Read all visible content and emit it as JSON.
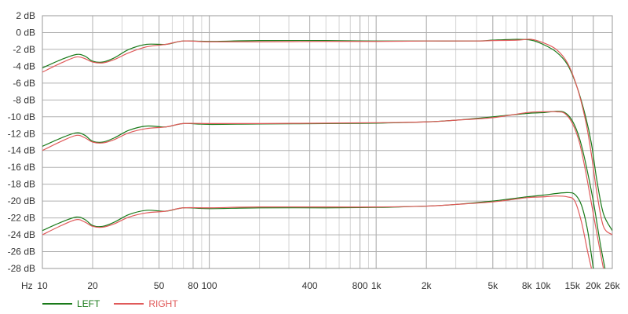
{
  "chart_data": {
    "type": "line",
    "xscale": "log",
    "yunit": "dB",
    "xlim": [
      10,
      26000
    ],
    "ylim": [
      -28,
      2
    ],
    "grid": true,
    "legend_position": "bottom-left",
    "x_axis_unit_label": "Hz",
    "x_tick_labels": [
      {
        "value": 10,
        "label": "10"
      },
      {
        "value": 20,
        "label": "20"
      },
      {
        "value": 50,
        "label": "50"
      },
      {
        "value": 80,
        "label": "80"
      },
      {
        "value": 100,
        "label": "100"
      },
      {
        "value": 400,
        "label": "400"
      },
      {
        "value": 800,
        "label": "800"
      },
      {
        "value": 1000,
        "label": "1k"
      },
      {
        "value": 2000,
        "label": "2k"
      },
      {
        "value": 5000,
        "label": "5k"
      },
      {
        "value": 8000,
        "label": "8k"
      },
      {
        "value": 10000,
        "label": "10k"
      },
      {
        "value": 15000,
        "label": "15k"
      },
      {
        "value": 20000,
        "label": "20k"
      },
      {
        "value": 26000,
        "label": "26k"
      }
    ],
    "y_tick_labels": [
      {
        "value": 2,
        "label": "2 dB"
      },
      {
        "value": 0,
        "label": "0 dB"
      },
      {
        "value": -2,
        "label": "-2 dB"
      },
      {
        "value": -4,
        "label": "-4 dB"
      },
      {
        "value": -6,
        "label": "-6 dB"
      },
      {
        "value": -8,
        "label": "-8 dB"
      },
      {
        "value": -10,
        "label": "-10 dB"
      },
      {
        "value": -12,
        "label": "-12 dB"
      },
      {
        "value": -14,
        "label": "-14 dB"
      },
      {
        "value": -16,
        "label": "-16 dB"
      },
      {
        "value": -18,
        "label": "-18 dB"
      },
      {
        "value": -20,
        "label": "-20 dB"
      },
      {
        "value": -22,
        "label": "-22 dB"
      },
      {
        "value": -24,
        "label": "-24 dB"
      },
      {
        "value": -26,
        "label": "-26 dB"
      },
      {
        "value": -28,
        "label": "-28 dB"
      }
    ],
    "series": [
      {
        "name": "LEFT",
        "color": "#1a7a1a",
        "curves": [
          [
            [
              10,
              -4.2
            ],
            [
              13,
              -3.2
            ],
            [
              16,
              -2.6
            ],
            [
              18,
              -2.8
            ],
            [
              20,
              -3.4
            ],
            [
              23,
              -3.5
            ],
            [
              27,
              -3.0
            ],
            [
              33,
              -2.0
            ],
            [
              42,
              -1.4
            ],
            [
              55,
              -1.4
            ],
            [
              70,
              -1.0
            ],
            [
              100,
              -1.05
            ],
            [
              200,
              -0.95
            ],
            [
              500,
              -0.95
            ],
            [
              1000,
              -1.0
            ],
            [
              2000,
              -1.0
            ],
            [
              4000,
              -1.0
            ],
            [
              5000,
              -0.9
            ],
            [
              7000,
              -0.8
            ],
            [
              8500,
              -0.9
            ],
            [
              10000,
              -1.4
            ],
            [
              12000,
              -2.3
            ],
            [
              14000,
              -3.8
            ],
            [
              16000,
              -6.5
            ],
            [
              18000,
              -10.0
            ],
            [
              19500,
              -13.2
            ],
            [
              21000,
              -17.5
            ],
            [
              23000,
              -21.5
            ],
            [
              26000,
              -23.5
            ]
          ],
          [
            [
              10,
              -13.5
            ],
            [
              13,
              -12.5
            ],
            [
              16,
              -11.9
            ],
            [
              18,
              -12.2
            ],
            [
              20,
              -12.9
            ],
            [
              23,
              -13.0
            ],
            [
              27,
              -12.5
            ],
            [
              33,
              -11.6
            ],
            [
              42,
              -11.1
            ],
            [
              55,
              -11.2
            ],
            [
              70,
              -10.8
            ],
            [
              100,
              -10.9
            ],
            [
              200,
              -10.85
            ],
            [
              500,
              -10.8
            ],
            [
              1000,
              -10.75
            ],
            [
              2000,
              -10.6
            ],
            [
              3000,
              -10.4
            ],
            [
              5000,
              -10.0
            ],
            [
              8000,
              -9.6
            ],
            [
              10000,
              -9.5
            ],
            [
              12000,
              -9.35
            ],
            [
              13500,
              -9.5
            ],
            [
              15000,
              -10.5
            ],
            [
              16500,
              -12.5
            ],
            [
              18000,
              -15.5
            ],
            [
              20000,
              -20.0
            ],
            [
              22000,
              -25.0
            ],
            [
              23500,
              -28.0
            ]
          ],
          [
            [
              10,
              -23.5
            ],
            [
              13,
              -22.5
            ],
            [
              16,
              -21.9
            ],
            [
              18,
              -22.2
            ],
            [
              20,
              -22.9
            ],
            [
              23,
              -23.0
            ],
            [
              27,
              -22.5
            ],
            [
              33,
              -21.6
            ],
            [
              42,
              -21.1
            ],
            [
              55,
              -21.2
            ],
            [
              70,
              -20.8
            ],
            [
              100,
              -20.9
            ],
            [
              200,
              -20.8
            ],
            [
              500,
              -20.8
            ],
            [
              1000,
              -20.75
            ],
            [
              2000,
              -20.6
            ],
            [
              3000,
              -20.4
            ],
            [
              5000,
              -20.0
            ],
            [
              8000,
              -19.5
            ],
            [
              10000,
              -19.3
            ],
            [
              12000,
              -19.1
            ],
            [
              14000,
              -19.0
            ],
            [
              15500,
              -19.2
            ],
            [
              17000,
              -20.5
            ],
            [
              18500,
              -23.5
            ],
            [
              20000,
              -28.0
            ]
          ]
        ]
      },
      {
        "name": "RIGHT",
        "color": "#e05a5a",
        "curves": [
          [
            [
              10,
              -4.7
            ],
            [
              13,
              -3.6
            ],
            [
              16,
              -2.9
            ],
            [
              18,
              -3.1
            ],
            [
              20,
              -3.5
            ],
            [
              23,
              -3.6
            ],
            [
              27,
              -3.2
            ],
            [
              33,
              -2.4
            ],
            [
              42,
              -1.7
            ],
            [
              55,
              -1.4
            ],
            [
              70,
              -1.0
            ],
            [
              100,
              -1.1
            ],
            [
              200,
              -1.1
            ],
            [
              500,
              -1.05
            ],
            [
              1000,
              -1.05
            ],
            [
              2000,
              -1.0
            ],
            [
              4000,
              -1.0
            ],
            [
              5000,
              -0.95
            ],
            [
              7000,
              -0.9
            ],
            [
              8500,
              -0.8
            ],
            [
              10000,
              -1.2
            ],
            [
              12000,
              -2.0
            ],
            [
              14000,
              -3.6
            ],
            [
              16000,
              -6.5
            ],
            [
              18000,
              -10.5
            ],
            [
              19500,
              -14.5
            ],
            [
              21000,
              -19.0
            ],
            [
              23000,
              -23.0
            ],
            [
              26000,
              -24.0
            ]
          ],
          [
            [
              10,
              -14.0
            ],
            [
              13,
              -12.9
            ],
            [
              16,
              -12.2
            ],
            [
              18,
              -12.5
            ],
            [
              20,
              -13.0
            ],
            [
              23,
              -13.1
            ],
            [
              27,
              -12.7
            ],
            [
              33,
              -11.9
            ],
            [
              42,
              -11.4
            ],
            [
              55,
              -11.2
            ],
            [
              70,
              -10.8
            ],
            [
              100,
              -10.8
            ],
            [
              200,
              -10.8
            ],
            [
              500,
              -10.75
            ],
            [
              1000,
              -10.7
            ],
            [
              2000,
              -10.6
            ],
            [
              3000,
              -10.4
            ],
            [
              5000,
              -10.1
            ],
            [
              8000,
              -9.5
            ],
            [
              10000,
              -9.4
            ],
            [
              12000,
              -9.4
            ],
            [
              13500,
              -9.6
            ],
            [
              15000,
              -10.8
            ],
            [
              16500,
              -13.0
            ],
            [
              18000,
              -16.5
            ],
            [
              20000,
              -21.5
            ],
            [
              22000,
              -26.0
            ],
            [
              23000,
              -28.0
            ]
          ],
          [
            [
              10,
              -24.0
            ],
            [
              13,
              -22.9
            ],
            [
              16,
              -22.2
            ],
            [
              18,
              -22.5
            ],
            [
              20,
              -23.0
            ],
            [
              23,
              -23.1
            ],
            [
              27,
              -22.7
            ],
            [
              33,
              -21.9
            ],
            [
              42,
              -21.4
            ],
            [
              55,
              -21.2
            ],
            [
              70,
              -20.8
            ],
            [
              100,
              -20.8
            ],
            [
              200,
              -20.7
            ],
            [
              500,
              -20.7
            ],
            [
              1000,
              -20.7
            ],
            [
              2000,
              -20.6
            ],
            [
              3000,
              -20.4
            ],
            [
              5000,
              -20.1
            ],
            [
              8000,
              -19.6
            ],
            [
              10000,
              -19.5
            ],
            [
              12000,
              -19.4
            ],
            [
              14000,
              -19.5
            ],
            [
              15500,
              -20.0
            ],
            [
              17000,
              -22.5
            ],
            [
              18500,
              -26.0
            ],
            [
              19500,
              -28.0
            ]
          ]
        ]
      }
    ]
  }
}
